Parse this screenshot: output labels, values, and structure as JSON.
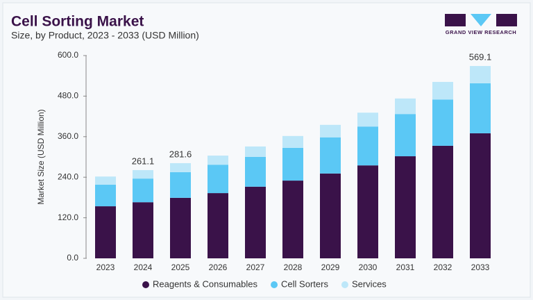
{
  "chart_data": {
    "type": "stacked_bar",
    "title": "Cell Sorting Market",
    "subtitle": "Size, by Product, 2023 - 2033 (USD Million)",
    "logo": "GRAND VIEW RESEARCH",
    "y_label": "Market Size (USD Million)",
    "categories": [
      "2023",
      "2024",
      "2025",
      "2026",
      "2027",
      "2028",
      "2029",
      "2030",
      "2031",
      "2032",
      "2033"
    ],
    "series": [
      {
        "name": "Reagents & Consumables",
        "color": "#3a1249",
        "values": [
          154,
          166,
          179,
          193,
          212,
          230,
          251,
          275,
          302,
          333,
          370
        ]
      },
      {
        "name": "Cell Sorters",
        "color": "#5bc8f5",
        "values": [
          64,
          70,
          76,
          84,
          88,
          97,
          107,
          115,
          125,
          137,
          148
        ]
      },
      {
        "name": "Services",
        "color": "#bde7f9",
        "values": [
          24,
          25.1,
          26.6,
          27,
          31,
          35,
          37,
          41,
          46,
          52,
          51.1
        ]
      }
    ],
    "annotations": [
      {
        "category": "2024",
        "value": 261.1
      },
      {
        "category": "2025",
        "value": 281.6
      },
      {
        "category": "2033",
        "value": 569.1
      }
    ],
    "ylim": [
      0,
      600
    ],
    "yticks": [
      {
        "value": 0,
        "label": "0.0"
      },
      {
        "value": 120,
        "label": "120.0"
      },
      {
        "value": 240,
        "label": "240.0"
      },
      {
        "value": 360,
        "label": "360.0"
      },
      {
        "value": 480,
        "label": "480.0"
      },
      {
        "value": 600,
        "label": "600.0"
      }
    ]
  }
}
